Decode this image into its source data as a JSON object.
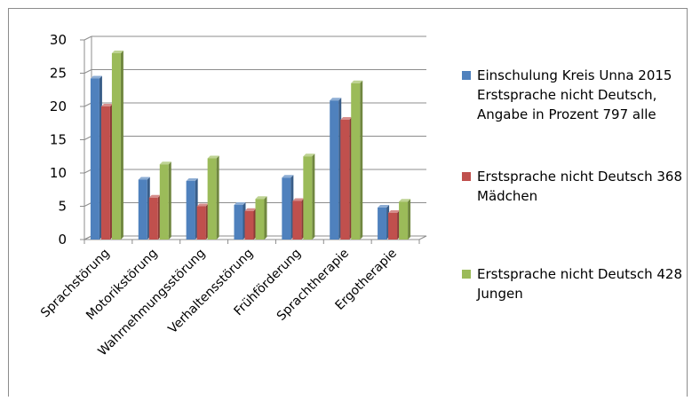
{
  "chart_data": {
    "type": "bar",
    "title": "",
    "xlabel": "",
    "ylabel": "",
    "ylim": [
      0,
      30
    ],
    "yticks": [
      0,
      5,
      10,
      15,
      20,
      25,
      30
    ],
    "grid": true,
    "legend_position": "right",
    "categories": [
      "Sprachstörung",
      "Motorikstörung",
      "Wahrnehmungsstörung",
      "Verhaltensstörung",
      "Frühförderung",
      "Sprachtherapie",
      "Ergotherapie"
    ],
    "series": [
      {
        "name": "Einschulung Kreis Unna 2015 Erstsprache nicht Deutsch, Angabe in Prozent 797 alle",
        "color": "#4f81bd",
        "values": [
          24.2,
          9.0,
          8.8,
          5.2,
          9.3,
          20.9,
          4.8
        ]
      },
      {
        "name": "Erstsprache nicht Deutsch 368 Mädchen",
        "color": "#c0504d",
        "values": [
          20.0,
          6.3,
          5.0,
          4.3,
          5.8,
          18.0,
          4.0
        ]
      },
      {
        "name": "Erstsprache nicht Deutsch 428 Jungen",
        "color": "#9bbb59",
        "values": [
          28.0,
          11.3,
          12.2,
          6.1,
          12.5,
          23.5,
          5.7
        ]
      }
    ]
  }
}
